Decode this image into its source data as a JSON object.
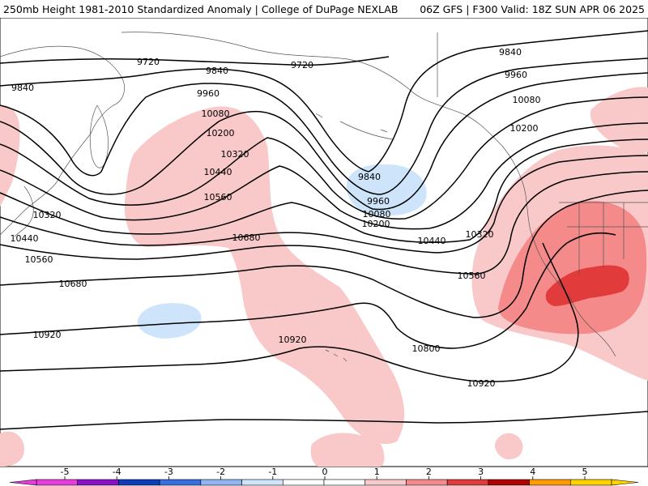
{
  "header": {
    "title_left": "250mb Height 1981-2010 Standardized Anomaly | College of DuPage NEXLAB",
    "title_right": "06Z GFS | F300 Valid: 18Z SUN APR 06 2025"
  },
  "colorbar": {
    "ticks": [
      "-5",
      "-4",
      "-3",
      "-2",
      "-1",
      "0",
      "1",
      "2",
      "3",
      "4",
      "5"
    ],
    "colors": [
      "#e83cdc",
      "#8a10c8",
      "#0f3bb8",
      "#3a6ee0",
      "#8fb6f0",
      "#cde4fa",
      "#ffffff",
      "#ffffff",
      "#f9c8c8",
      "#f58a8a",
      "#e23b3b",
      "#b00000",
      "#ff9a00",
      "#ffd200"
    ]
  },
  "contours": [
    {
      "label": "9720"
    },
    {
      "label": "9720"
    },
    {
      "label": "9840"
    },
    {
      "label": "9840"
    },
    {
      "label": "9840"
    },
    {
      "label": "9840"
    },
    {
      "label": "9960"
    },
    {
      "label": "9960"
    },
    {
      "label": "9960"
    },
    {
      "label": "10080"
    },
    {
      "label": "10080"
    },
    {
      "label": "10080"
    },
    {
      "label": "10200"
    },
    {
      "label": "10200"
    },
    {
      "label": "10200"
    },
    {
      "label": "10320"
    },
    {
      "label": "10320"
    },
    {
      "label": "10320"
    },
    {
      "label": "10440"
    },
    {
      "label": "10440"
    },
    {
      "label": "10440"
    },
    {
      "label": "10560"
    },
    {
      "label": "10560"
    },
    {
      "label": "10560"
    },
    {
      "label": "10680"
    },
    {
      "label": "10680"
    },
    {
      "label": "10800"
    },
    {
      "label": "10920"
    },
    {
      "label": "10920"
    },
    {
      "label": "10920"
    }
  ]
}
